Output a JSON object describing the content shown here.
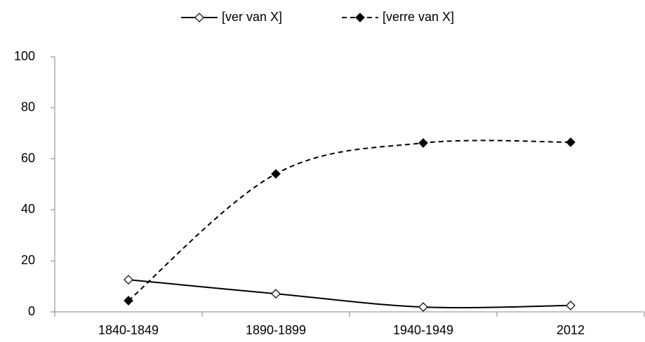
{
  "chart_data": {
    "type": "line",
    "categories": [
      "1840-1849",
      "1890-1899",
      "1940-1949",
      "2012"
    ],
    "series": [
      {
        "name": "[ver van X]",
        "color": "#000000",
        "dashed": false,
        "marker_filled": false,
        "values": [
          12.6,
          7.1,
          1.9,
          2.5
        ]
      },
      {
        "name": "[verre van X]",
        "color": "#000000",
        "dashed": true,
        "marker_filled": true,
        "values": [
          4.4,
          54.1,
          66.2,
          66.5
        ]
      }
    ],
    "ylim": [
      0,
      100
    ],
    "yticks": [
      0,
      20,
      40,
      60,
      80,
      100
    ],
    "smooth": true,
    "grid": false,
    "legend": "top"
  }
}
